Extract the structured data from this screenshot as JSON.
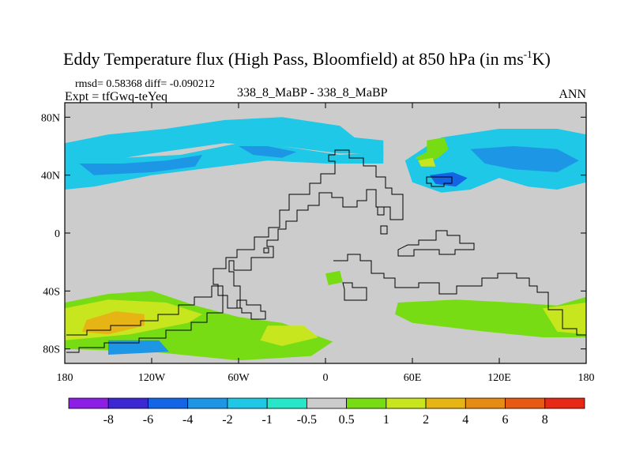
{
  "chart_data": {
    "type": "heatmap",
    "title": "Eddy Temperature flux (High Pass, Bloomfield) at 850 hPa (in ms",
    "title_superscript": "-1",
    "title_suffix": "K)",
    "stats": "rmsd= 0.58368 diff= -0.090212",
    "experiment": "Expt = tfGwq-teYeq",
    "case": "338_8_MaBP - 338_8_MaBP",
    "season": "ANN",
    "x_ticks": [
      "180",
      "120W",
      "60W",
      "0",
      "60E",
      "120E",
      "180"
    ],
    "y_ticks": [
      "80N",
      "40N",
      "0",
      "40S",
      "80S"
    ],
    "x_range": [
      -180,
      180
    ],
    "y_range": [
      -90,
      90
    ],
    "colorbar": {
      "labels": [
        "-8",
        "-6",
        "-4",
        "-2",
        "-1",
        "-0.5",
        "0.5",
        "1",
        "2",
        "4",
        "6",
        "8"
      ],
      "colors": [
        "#8c1ee6",
        "#3c28d2",
        "#1464e6",
        "#1e96e6",
        "#1ec8e6",
        "#28e6c8",
        "#cccccc",
        "#78dc14",
        "#c8e61e",
        "#e6b414",
        "#e68c14",
        "#e65a14",
        "#e62814"
      ]
    },
    "regions": [
      {
        "name": "arctic-band",
        "level": "-1",
        "lonlat": [
          [
            -180,
            62
          ],
          [
            -150,
            68
          ],
          [
            -110,
            72
          ],
          [
            -70,
            78
          ],
          [
            -30,
            80
          ],
          [
            10,
            74
          ],
          [
            20,
            66
          ],
          [
            40,
            64
          ],
          [
            40,
            55
          ],
          [
            10,
            55
          ],
          [
            -30,
            60
          ],
          [
            -70,
            62
          ],
          [
            -120,
            55
          ],
          [
            -150,
            50
          ],
          [
            -180,
            50
          ]
        ]
      },
      {
        "name": "pacific-band",
        "level": "-1",
        "lonlat": [
          [
            -180,
            52
          ],
          [
            -140,
            52
          ],
          [
            -100,
            54
          ],
          [
            -60,
            62
          ],
          [
            -30,
            60
          ],
          [
            10,
            54
          ],
          [
            40,
            56
          ],
          [
            40,
            48
          ],
          [
            0,
            48
          ],
          [
            -40,
            50
          ],
          [
            -80,
            45
          ],
          [
            -120,
            40
          ],
          [
            -160,
            32
          ],
          [
            -180,
            30
          ]
        ]
      },
      {
        "name": "pacific-core",
        "level": "-2",
        "lonlat": [
          [
            -170,
            48
          ],
          [
            -140,
            48
          ],
          [
            -110,
            50
          ],
          [
            -85,
            54
          ],
          [
            -90,
            46
          ],
          [
            -120,
            42
          ],
          [
            -160,
            40
          ]
        ]
      },
      {
        "name": "atlantic-core",
        "level": "-2",
        "lonlat": [
          [
            -60,
            60
          ],
          [
            -40,
            60
          ],
          [
            -20,
            56
          ],
          [
            -30,
            52
          ],
          [
            -50,
            54
          ]
        ]
      },
      {
        "name": "asia-band",
        "level": "-1",
        "lonlat": [
          [
            80,
            66
          ],
          [
            120,
            72
          ],
          [
            160,
            72
          ],
          [
            180,
            68
          ],
          [
            180,
            35
          ],
          [
            160,
            30
          ],
          [
            140,
            32
          ],
          [
            120,
            38
          ],
          [
            100,
            30
          ],
          [
            80,
            28
          ],
          [
            60,
            35
          ],
          [
            55,
            50
          ],
          [
            70,
            60
          ]
        ]
      },
      {
        "name": "asia-core",
        "level": "-2",
        "lonlat": [
          [
            100,
            58
          ],
          [
            130,
            60
          ],
          [
            160,
            58
          ],
          [
            175,
            50
          ],
          [
            160,
            42
          ],
          [
            130,
            44
          ],
          [
            110,
            48
          ]
        ]
      },
      {
        "name": "asia-trough",
        "level": "-4",
        "lonlat": [
          [
            72,
            40
          ],
          [
            88,
            42
          ],
          [
            98,
            38
          ],
          [
            90,
            32
          ],
          [
            76,
            34
          ]
        ]
      },
      {
        "name": "nz-pos",
        "level": "1",
        "lonlat": [
          [
            70,
            64
          ],
          [
            82,
            66
          ],
          [
            85,
            58
          ],
          [
            78,
            52
          ],
          [
            68,
            48
          ],
          [
            62,
            52
          ],
          [
            70,
            56
          ]
        ]
      },
      {
        "name": "nz-pos2",
        "level": "2",
        "lonlat": [
          [
            64,
            50
          ],
          [
            74,
            52
          ],
          [
            76,
            46
          ],
          [
            66,
            46
          ]
        ]
      },
      {
        "name": "southern-ocean-west",
        "level": "1",
        "lonlat": [
          [
            -180,
            -48
          ],
          [
            -150,
            -42
          ],
          [
            -120,
            -40
          ],
          [
            -90,
            -50
          ],
          [
            -60,
            -58
          ],
          [
            -30,
            -62
          ],
          [
            5,
            -75
          ],
          [
            -10,
            -85
          ],
          [
            -60,
            -88
          ],
          [
            -120,
            -82
          ],
          [
            -180,
            -80
          ]
        ]
      },
      {
        "name": "southern-ocean-west-core",
        "level": "2",
        "lonlat": [
          [
            -180,
            -52
          ],
          [
            -150,
            -46
          ],
          [
            -110,
            -48
          ],
          [
            -85,
            -56
          ],
          [
            -95,
            -62
          ],
          [
            -135,
            -70
          ],
          [
            -180,
            -74
          ]
        ]
      },
      {
        "name": "southern-ocean-west-max",
        "level": "4",
        "lonlat": [
          [
            -165,
            -60
          ],
          [
            -145,
            -54
          ],
          [
            -125,
            -56
          ],
          [
            -125,
            -64
          ],
          [
            -150,
            -70
          ],
          [
            -168,
            -68
          ]
        ]
      },
      {
        "name": "south-atlantic",
        "level": "2",
        "lonlat": [
          [
            -40,
            -64
          ],
          [
            -15,
            -64
          ],
          [
            -5,
            -72
          ],
          [
            -30,
            -78
          ],
          [
            -45,
            -74
          ]
        ]
      },
      {
        "name": "indian-east",
        "level": "1",
        "lonlat": [
          [
            50,
            -48
          ],
          [
            90,
            -46
          ],
          [
            130,
            -48
          ],
          [
            160,
            -50
          ],
          [
            180,
            -44
          ],
          [
            180,
            -72
          ],
          [
            150,
            -72
          ],
          [
            110,
            -68
          ],
          [
            60,
            -62
          ],
          [
            48,
            -56
          ]
        ]
      },
      {
        "name": "indian-east-core",
        "level": "2",
        "lonlat": [
          [
            150,
            -52
          ],
          [
            180,
            -48
          ],
          [
            180,
            -70
          ],
          [
            160,
            -68
          ]
        ]
      },
      {
        "name": "antarctic-cold",
        "level": "-2",
        "lonlat": [
          [
            -150,
            -74
          ],
          [
            -115,
            -74
          ],
          [
            -108,
            -82
          ],
          [
            -150,
            -84
          ]
        ]
      },
      {
        "name": "south-patch",
        "level": "1",
        "lonlat": [
          [
            0,
            -28
          ],
          [
            10,
            -26
          ],
          [
            12,
            -34
          ],
          [
            2,
            -36
          ]
        ]
      }
    ]
  }
}
